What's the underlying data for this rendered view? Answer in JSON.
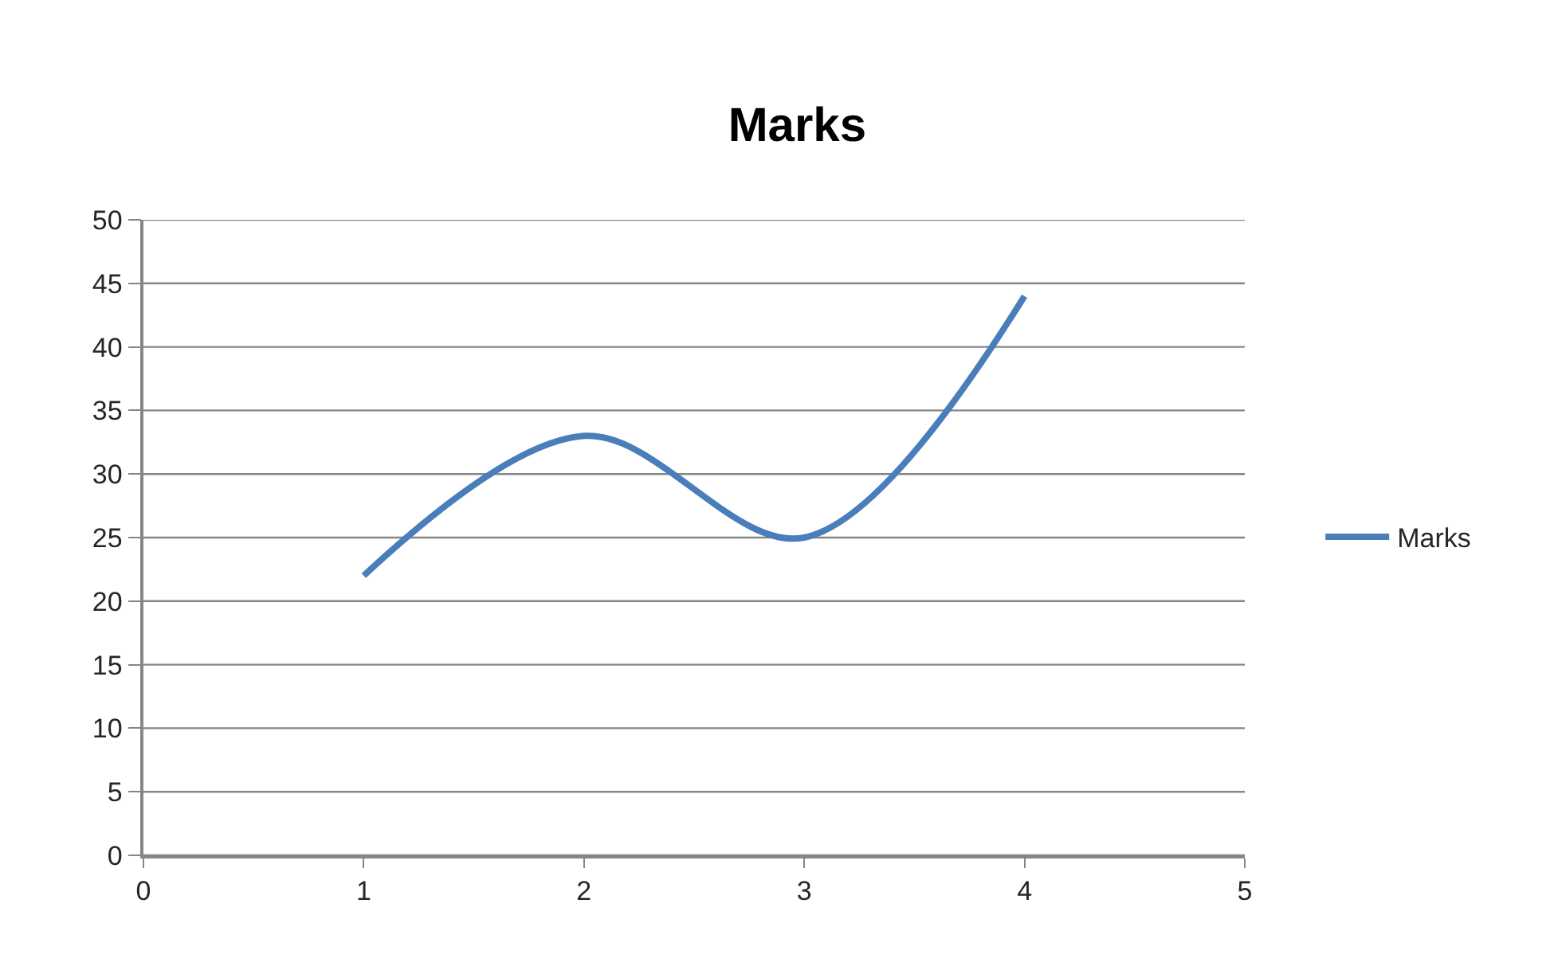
{
  "chart_data": {
    "type": "line",
    "title": "Marks",
    "x": [
      1,
      2,
      3,
      4
    ],
    "series": [
      {
        "name": "Marks",
        "color": "#4a7ebb",
        "values": [
          22,
          33,
          25,
          44
        ]
      }
    ],
    "xlim": [
      0,
      5
    ],
    "xticks": [
      0,
      1,
      2,
      3,
      4,
      5
    ],
    "ylim": [
      0,
      50
    ],
    "yticks": [
      0,
      5,
      10,
      15,
      20,
      25,
      30,
      35,
      40,
      45,
      50
    ],
    "grid": "y",
    "legend": "right",
    "marker": "none",
    "line_style": "solid"
  }
}
